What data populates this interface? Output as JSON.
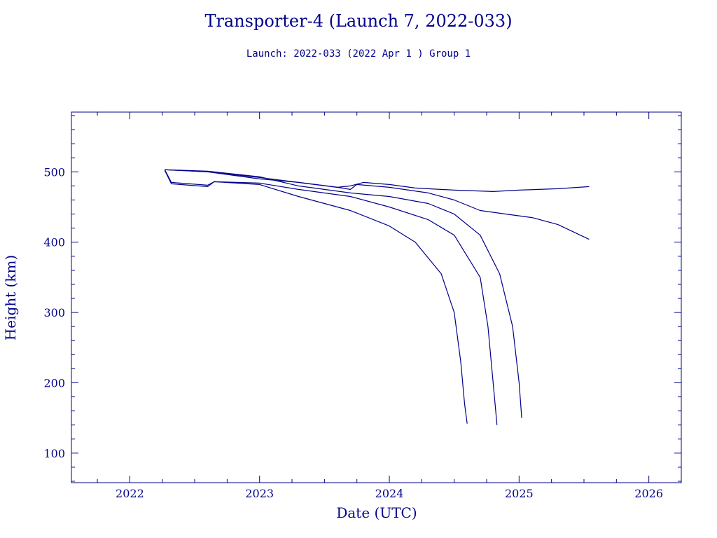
{
  "chart_data": {
    "type": "line",
    "title": "Transporter-4 (Launch 7, 2022-033)",
    "subtitle": "Launch: 2022-033  (2022 Apr  1 )  Group 1",
    "xlabel": "Date (UTC)",
    "ylabel": "Height (km)",
    "xlim": [
      2021.55,
      2026.25
    ],
    "ylim": [
      58,
      585
    ],
    "xticks": [
      2022,
      2023,
      2024,
      2025,
      2026
    ],
    "xtick_labels": [
      "2022",
      "2023",
      "2024",
      "2025",
      "2026"
    ],
    "yticks": [
      100,
      200,
      300,
      400,
      500
    ],
    "ytick_labels": [
      "100",
      "200",
      "300",
      "400",
      "500"
    ],
    "grid": false,
    "colors": {
      "line": "#00008b",
      "text": "#00008b",
      "background": "#ffffff"
    },
    "series": [
      {
        "x": [
          2022.27,
          2022.32,
          2022.6,
          2022.65,
          2023.0,
          2023.3,
          2023.7,
          2024.0,
          2024.2,
          2024.4,
          2024.5,
          2024.55,
          2024.58,
          2024.6
        ],
        "y": [
          502,
          483,
          479,
          486,
          482,
          465,
          445,
          423,
          400,
          355,
          300,
          230,
          170,
          142
        ]
      },
      {
        "x": [
          2022.27,
          2022.32,
          2022.6,
          2022.65,
          2023.0,
          2023.3,
          2023.7,
          2024.0,
          2024.3,
          2024.5,
          2024.7,
          2024.76,
          2024.8,
          2024.83
        ],
        "y": [
          503,
          485,
          481,
          486,
          484,
          475,
          465,
          450,
          432,
          410,
          350,
          280,
          200,
          140
        ]
      },
      {
        "x": [
          2022.27,
          2022.6,
          2023.0,
          2023.3,
          2023.7,
          2024.0,
          2024.3,
          2024.5,
          2024.7,
          2024.85,
          2024.95,
          2025.0,
          2025.02
        ],
        "y": [
          503,
          501,
          493,
          480,
          470,
          465,
          455,
          440,
          410,
          355,
          280,
          200,
          150
        ]
      },
      {
        "x": [
          2022.27,
          2022.6,
          2023.0,
          2023.3,
          2023.6,
          2023.7,
          2023.75,
          2024.0,
          2024.3,
          2024.5,
          2024.7,
          2024.9,
          2025.1,
          2025.3,
          2025.54
        ],
        "y": [
          503,
          500,
          492,
          485,
          478,
          475,
          482,
          478,
          470,
          460,
          445,
          440,
          435,
          425,
          404
        ]
      },
      {
        "x": [
          2022.27,
          2022.6,
          2023.0,
          2023.3,
          2023.6,
          2023.7,
          2023.8,
          2024.0,
          2024.2,
          2024.5,
          2024.8,
          2025.0,
          2025.3,
          2025.54
        ],
        "y": [
          503,
          500,
          490,
          485,
          478,
          480,
          485,
          482,
          477,
          474,
          472,
          474,
          476,
          479
        ]
      }
    ]
  }
}
